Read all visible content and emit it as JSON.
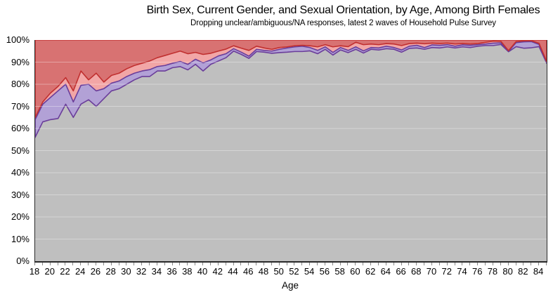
{
  "header": {
    "title": "Birth Sex, Current Gender, and Sexual Orientation, by Age, Among Birth Females",
    "subtitle": "Dropping unclear/ambiguous/NA responses, latest 2 waves of Household Pulse Survey"
  },
  "chart_data": {
    "type": "area",
    "stacked": true,
    "title": "Birth Sex, Current Gender, and Sexual Orientation, by Age, Among Birth Females",
    "subtitle": "Dropping unclear/ambiguous/NA responses, latest 2 waves of Household Pulse Survey",
    "xlabel": "Age",
    "ylabel": "",
    "xlim": [
      18,
      85
    ],
    "ylim": [
      0,
      100
    ],
    "grid": "horizontal",
    "legend": "none",
    "y_ticks": [
      0,
      10,
      20,
      30,
      40,
      50,
      60,
      70,
      80,
      90,
      100
    ],
    "y_tick_suffix": "%",
    "x_ticks_labeled": [
      18,
      20,
      22,
      24,
      26,
      28,
      30,
      32,
      34,
      36,
      38,
      40,
      42,
      44,
      46,
      48,
      50,
      52,
      54,
      56,
      58,
      60,
      62,
      64,
      66,
      68,
      70,
      72,
      74,
      76,
      78,
      80,
      82,
      84
    ],
    "x": [
      18,
      19,
      20,
      21,
      22,
      23,
      24,
      25,
      26,
      27,
      28,
      29,
      30,
      31,
      32,
      33,
      34,
      35,
      36,
      37,
      38,
      39,
      40,
      41,
      42,
      43,
      44,
      45,
      46,
      47,
      48,
      49,
      50,
      51,
      52,
      53,
      54,
      55,
      56,
      57,
      58,
      59,
      60,
      61,
      62,
      63,
      64,
      65,
      66,
      67,
      68,
      69,
      70,
      71,
      72,
      73,
      74,
      75,
      76,
      77,
      78,
      79,
      80,
      81,
      82,
      83,
      84,
      85
    ],
    "boundaries_note": "Cumulative % boundaries of the stacked bands, bottom to top: gray band fills 0..gray, purple band fills gray..purple, pink band fills purple..red_inner, red band fills red_inner..100",
    "boundaries": {
      "gray": [
        56,
        63,
        64,
        64.5,
        71,
        65,
        71,
        73,
        70,
        73.5,
        77,
        78,
        80,
        82,
        83.5,
        83.5,
        86,
        86,
        87.5,
        88,
        86.5,
        89,
        86,
        89,
        90.5,
        92,
        95,
        93.5,
        91.7,
        94.8,
        94.5,
        94,
        94.3,
        94.5,
        94.8,
        94.8,
        95.1,
        93.8,
        95.8,
        93.2,
        95.5,
        94.3,
        95.8,
        94.1,
        95.8,
        95.5,
        96.1,
        95.8,
        94.5,
        96.2,
        96.4,
        95.8,
        96.6,
        96.4,
        96.9,
        96.4,
        96.9,
        96.6,
        97.2,
        97.5,
        97.5,
        98,
        94.7,
        97,
        96.3,
        96.5,
        97,
        89.5
      ],
      "purple": [
        64,
        71,
        74,
        77,
        80,
        72,
        79.5,
        80,
        77,
        78,
        80.5,
        81.5,
        83.5,
        85,
        86,
        86.6,
        88,
        88.5,
        89.5,
        90.3,
        89,
        91.3,
        89.7,
        91,
        92.8,
        93.8,
        96.1,
        94.5,
        92.7,
        95.8,
        95.3,
        95,
        95.8,
        96.4,
        96.9,
        97.2,
        96.6,
        95.3,
        96.9,
        94.4,
        96.6,
        95.3,
        96.9,
        95.1,
        96.6,
        96.4,
        97.2,
        96.6,
        95.5,
        97.2,
        97.6,
        96.6,
        97.8,
        97.6,
        97.9,
        97.2,
        97.8,
        97.6,
        97.9,
        98.2,
        98.6,
        98.7,
        94.9,
        98.8,
        99.2,
        99.3,
        98,
        89.8
      ],
      "red_inner": [
        65,
        72,
        76,
        79,
        83,
        77,
        86,
        82,
        85,
        81,
        84,
        85,
        87,
        88.5,
        89.5,
        90.5,
        92,
        93,
        94,
        95,
        93.8,
        94.4,
        93.5,
        94,
        95,
        95.9,
        97.4,
        96.3,
        95.3,
        97.2,
        96.4,
        95.8,
        96.6,
        96.9,
        97.4,
        97.6,
        97.4,
        96.9,
        97.9,
        96.9,
        97.4,
        97,
        99,
        97.9,
        98.2,
        97.9,
        98.4,
        98.2,
        97.5,
        98.4,
        98.6,
        98.3,
        98.6,
        98.4,
        98.6,
        98.2,
        98.4,
        98.2,
        98.4,
        99,
        99.5,
        99.4,
        95.2,
        99.3,
        99.6,
        99.7,
        98.5,
        90.2
      ]
    },
    "series": [
      {
        "name": "gray-band",
        "fill": "#bfbfbf",
        "edge": "none"
      },
      {
        "name": "purple-band",
        "fill": "#b2a1d6",
        "edge": "#6a3d9a"
      },
      {
        "name": "pink-band",
        "fill": "#f2a6a6",
        "edge": "none"
      },
      {
        "name": "red-band",
        "fill": "#d87272",
        "edge": "#c12f2f"
      }
    ],
    "colors": {
      "gray_fill": "#bfbfbf",
      "purple_fill": "#b2a1d6",
      "purple_edge": "#6a3d9a",
      "pink_fill": "#f2a6a6",
      "red_fill": "#d87272",
      "red_edge": "#c12f2f",
      "gridline": "rgba(255,255,255,0.35)",
      "axis": "#2a2a2a",
      "tick": "#8a8a8a"
    }
  }
}
